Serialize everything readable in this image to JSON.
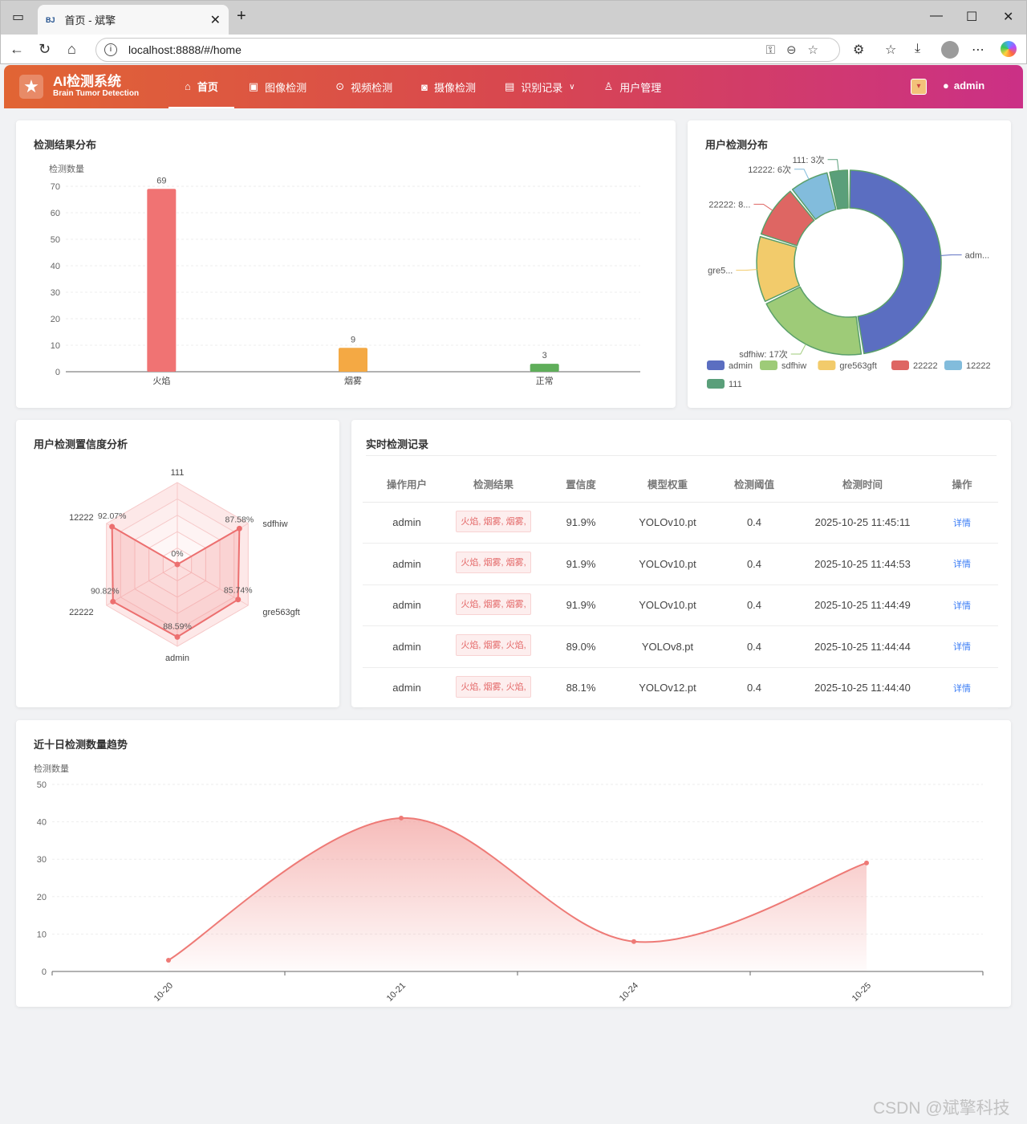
{
  "browser": {
    "tab_title": "首页 - 斌擎",
    "tab_favicon": "BJ",
    "url": "localhost:8888/#/home"
  },
  "app": {
    "title": "AI检测系统",
    "subtitle": "Brain Tumor Detection",
    "menu": [
      {
        "label": "首页",
        "icon": "home-icon",
        "active": true
      },
      {
        "label": "图像检测",
        "icon": "image-icon"
      },
      {
        "label": "视频检测",
        "icon": "play-icon"
      },
      {
        "label": "摄像检测",
        "icon": "camera-icon"
      },
      {
        "label": "识别记录",
        "icon": "document-icon",
        "dropdown": true
      },
      {
        "label": "用户管理",
        "icon": "user-icon"
      }
    ],
    "username": "admin"
  },
  "bar_card": {
    "title": "检测结果分布",
    "chart_data": {
      "type": "bar",
      "ylabel": "检测数量",
      "categories": [
        "火焰",
        "烟雾",
        "正常"
      ],
      "values": [
        69,
        9,
        3
      ],
      "colors": [
        "#f07373",
        "#f4a944",
        "#5fae5a"
      ],
      "ylim": [
        0,
        70
      ],
      "yticks": [
        0,
        10,
        20,
        30,
        40,
        50,
        60,
        70
      ]
    }
  },
  "pie_card": {
    "title": "用户检测分布",
    "chart_data": {
      "type": "pie",
      "slices": [
        {
          "name": "admin",
          "value": 40,
          "color": "#5b6ec1",
          "label": "adm..."
        },
        {
          "name": "sdfhiw",
          "value": 17,
          "color": "#9ecb78",
          "label": "sdfhiw: 17次"
        },
        {
          "name": "gre563gft",
          "value": 10,
          "color": "#f2cb6b",
          "label": "gre5..."
        },
        {
          "name": "22222",
          "value": 8,
          "color": "#de6663",
          "label": "22222: 8..."
        },
        {
          "name": "12222",
          "value": 6,
          "color": "#82bcdc",
          "label": "12222: 6次"
        },
        {
          "name": "111",
          "value": 3,
          "color": "#5a9f7a",
          "label": "111: 3次"
        }
      ]
    }
  },
  "radar_card": {
    "title": "用户检测置信度分析",
    "chart_data": {
      "type": "radar",
      "indicators": [
        "111",
        "sdfhiw",
        "gre563gft",
        "admin",
        "22222",
        "12222"
      ],
      "values": [
        0,
        87.58,
        85.74,
        88.59,
        90.82,
        92.07
      ],
      "value_labels": [
        "0%",
        "87.58%",
        "85.74%",
        "88.59%",
        "90.82%",
        "92.07%"
      ],
      "max": 100
    }
  },
  "records": {
    "title": "实时检测记录",
    "columns": [
      "操作用户",
      "检测结果",
      "置信度",
      "模型权重",
      "检测阈值",
      "检测时间",
      "操作"
    ],
    "rows": [
      {
        "user": "admin",
        "result": "火焰, 烟雾, 烟雾,",
        "confidence": "91.9%",
        "model": "YOLOv10.pt",
        "threshold": "0.4",
        "time": "2025-10-25 11:45:11",
        "action": "详情"
      },
      {
        "user": "admin",
        "result": "火焰, 烟雾, 烟雾,",
        "confidence": "91.9%",
        "model": "YOLOv10.pt",
        "threshold": "0.4",
        "time": "2025-10-25 11:44:53",
        "action": "详情"
      },
      {
        "user": "admin",
        "result": "火焰, 烟雾, 烟雾,",
        "confidence": "91.9%",
        "model": "YOLOv10.pt",
        "threshold": "0.4",
        "time": "2025-10-25 11:44:49",
        "action": "详情"
      },
      {
        "user": "admin",
        "result": "火焰, 烟雾, 火焰,",
        "confidence": "89.0%",
        "model": "YOLOv8.pt",
        "threshold": "0.4",
        "time": "2025-10-25 11:44:44",
        "action": "详情"
      },
      {
        "user": "admin",
        "result": "火焰, 烟雾, 火焰,",
        "confidence": "88.1%",
        "model": "YOLOv12.pt",
        "threshold": "0.4",
        "time": "2025-10-25 11:44:40",
        "action": "详情"
      }
    ]
  },
  "trend_card": {
    "title": "近十日检测数量趋势",
    "chart_data": {
      "type": "area",
      "ylabel": "检测数量",
      "x": [
        "10-20",
        "10-21",
        "10-24",
        "10-25"
      ],
      "values": [
        3,
        41,
        8,
        29
      ],
      "ylim": [
        0,
        50
      ],
      "yticks": [
        0,
        10,
        20,
        30,
        40,
        50
      ],
      "color": "#ee7a76"
    }
  },
  "watermark": "CSDN @斌擎科技"
}
